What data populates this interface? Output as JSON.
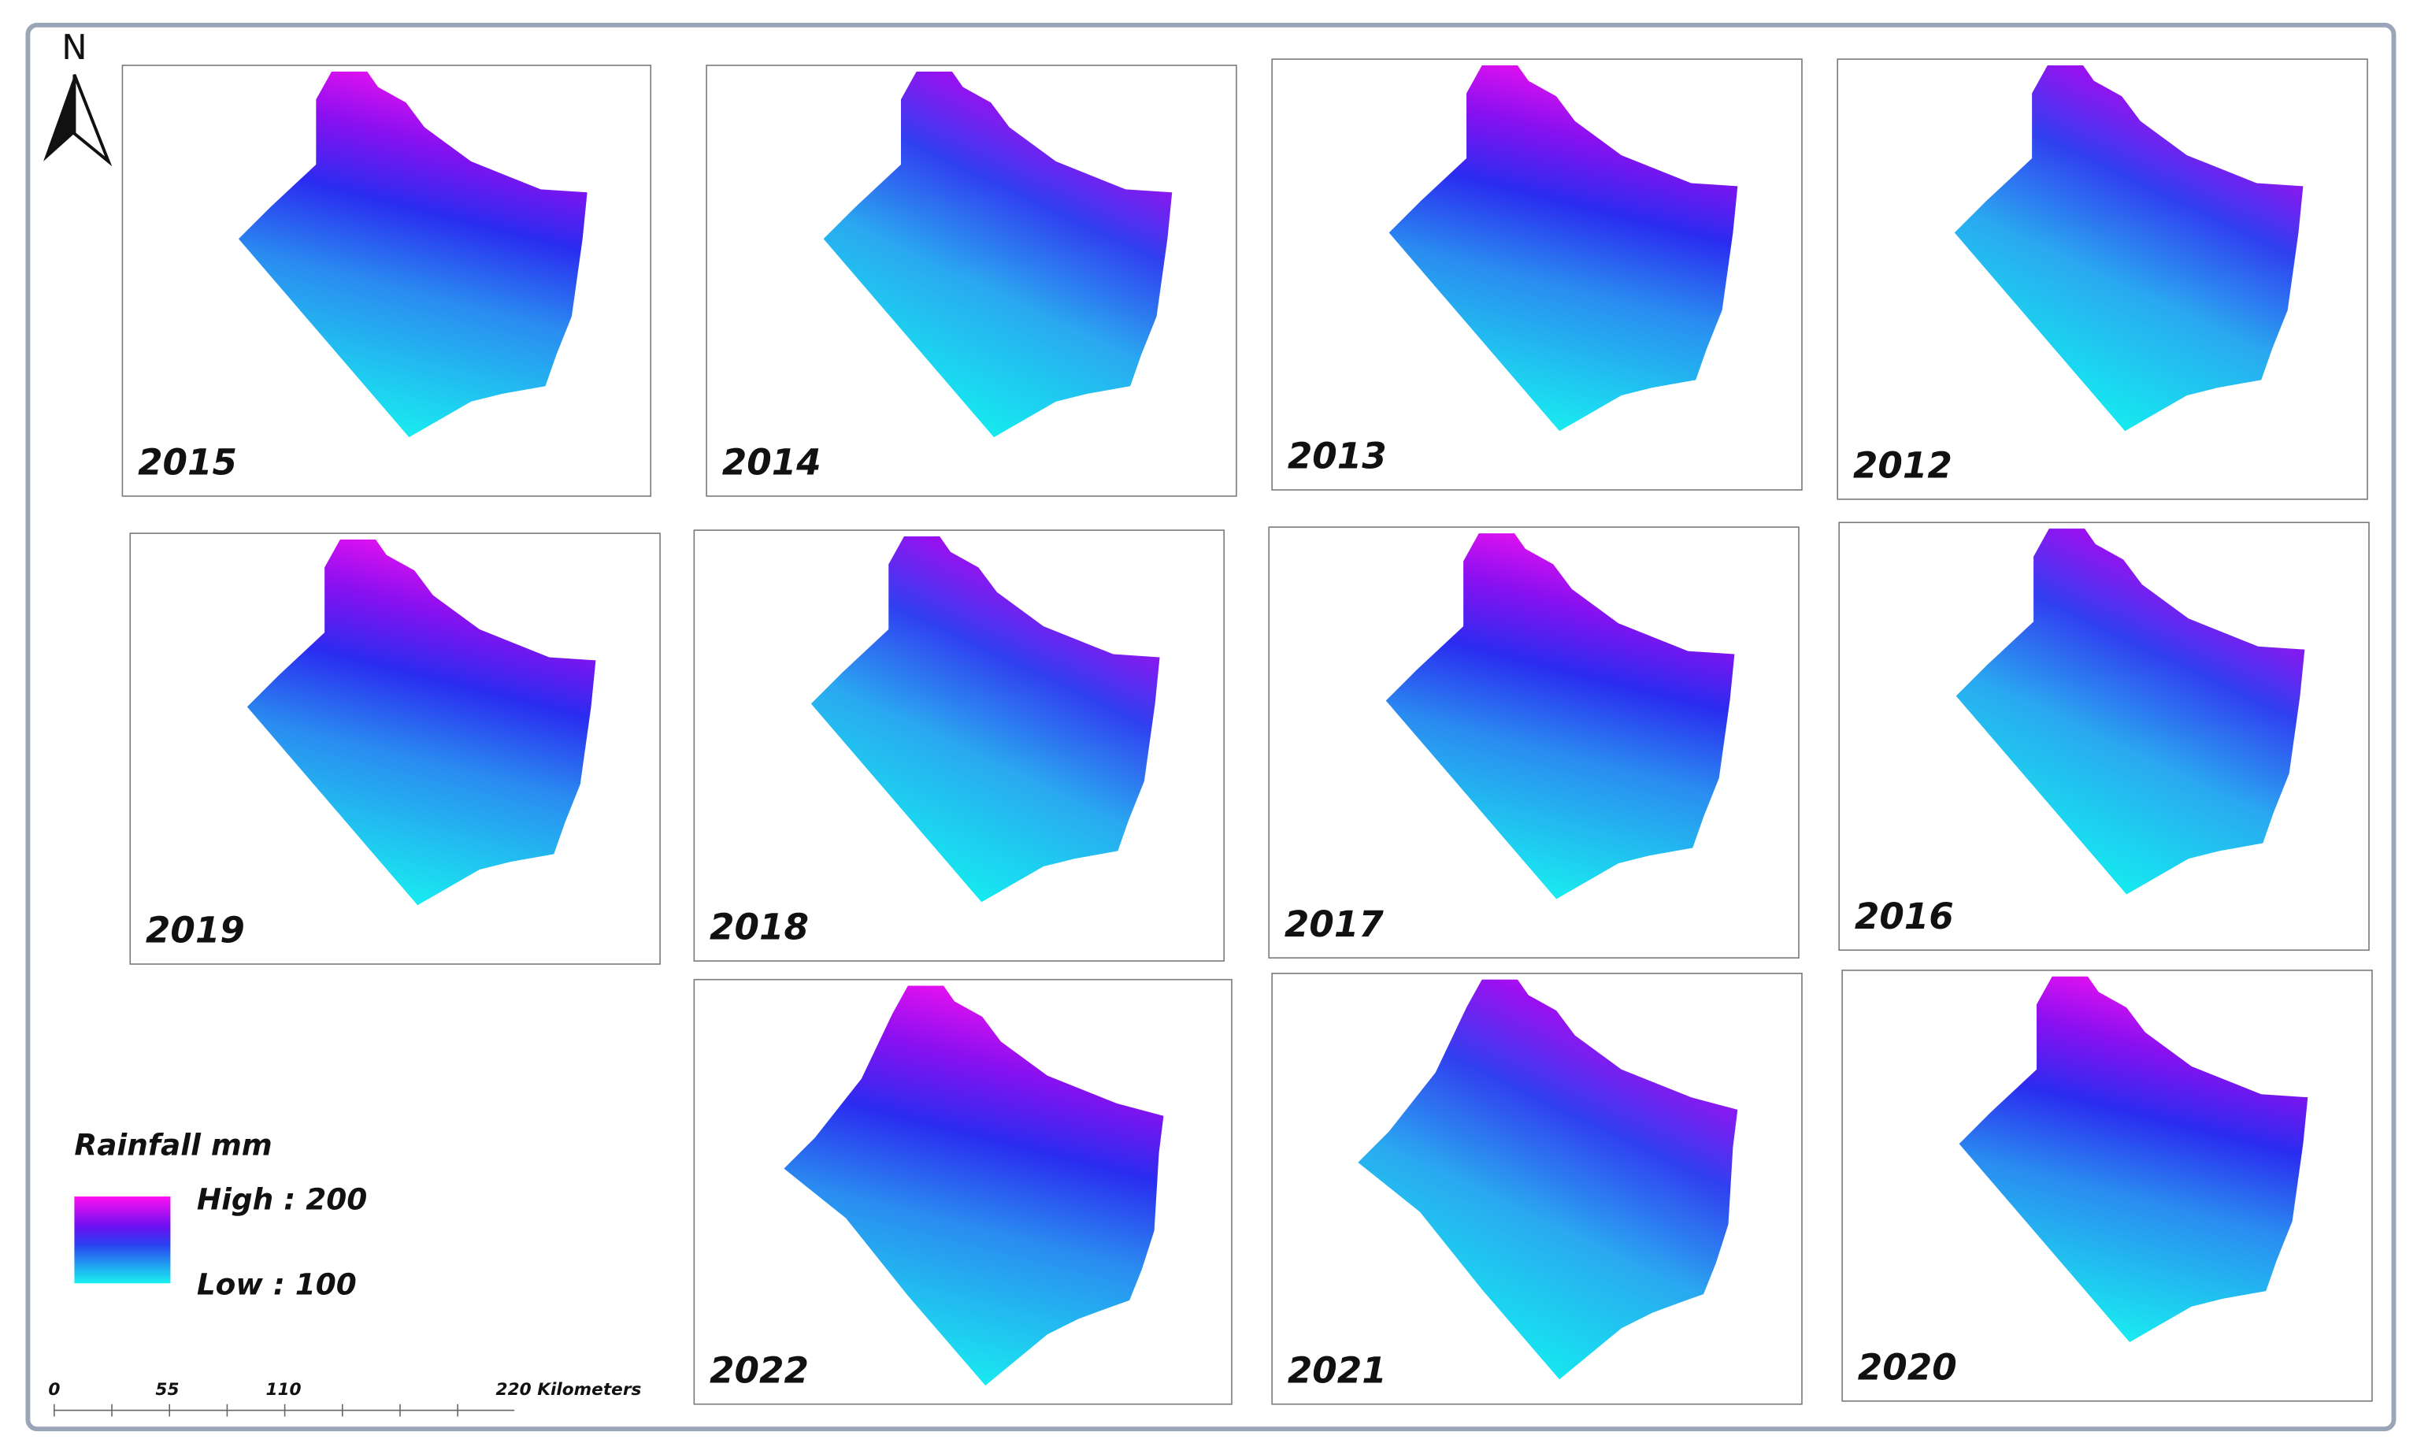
{
  "north_arrow": "N",
  "panels": [
    {
      "year": "2015"
    },
    {
      "year": "2014"
    },
    {
      "year": "2013"
    },
    {
      "year": "2012"
    },
    {
      "year": "2019"
    },
    {
      "year": "2018"
    },
    {
      "year": "2017"
    },
    {
      "year": "2016"
    },
    {
      "year": "2022"
    },
    {
      "year": "2021"
    },
    {
      "year": "2020"
    }
  ],
  "legend": {
    "title": "Rainfall mm",
    "high": "High : 200",
    "low": "Low : 100"
  },
  "scale_bar": {
    "labels": [
      "0",
      "55",
      "110",
      "220 Kilometers"
    ]
  }
}
